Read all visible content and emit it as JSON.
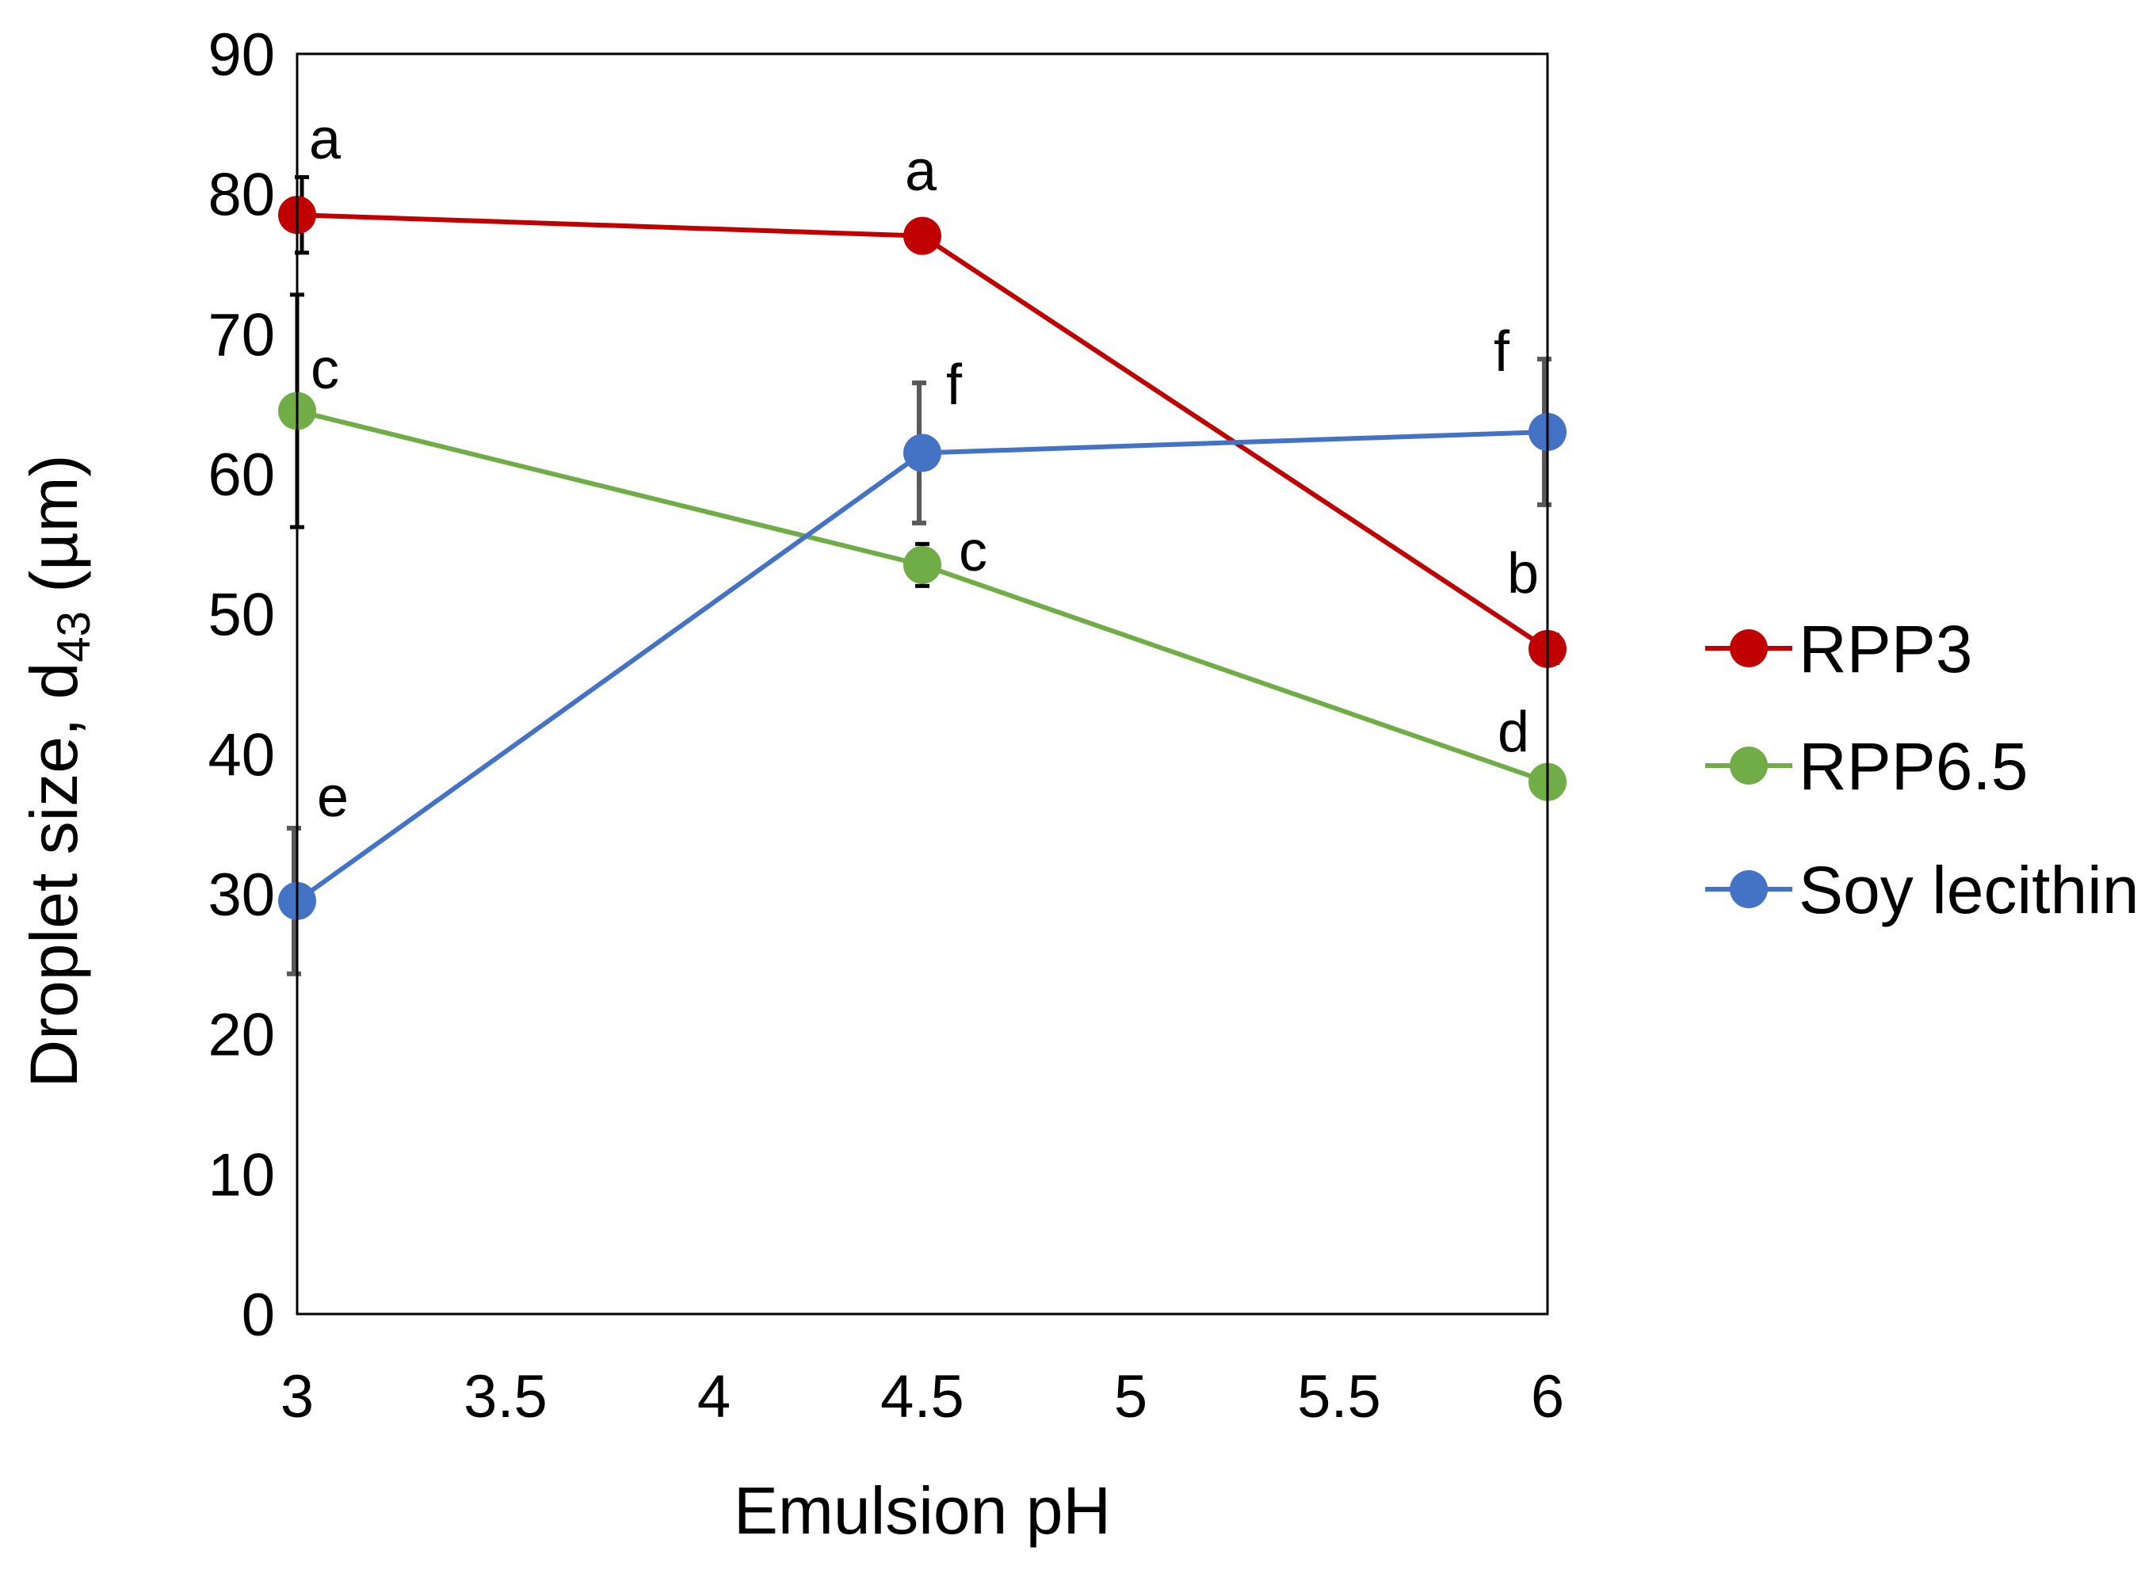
{
  "chart_data": {
    "type": "line",
    "title": "",
    "xlabel": "Emulsion pH",
    "ylabel_main": "Droplet size, d",
    "ylabel_sub": "43",
    "ylabel_unit": " (µm)",
    "xlim": [
      3,
      6
    ],
    "ylim": [
      0,
      90
    ],
    "xticks": [
      "3",
      "3.5",
      "4",
      "4.5",
      "5",
      "5.5",
      "6"
    ],
    "xtick_values": [
      3,
      3.5,
      4,
      4.5,
      5,
      5.5,
      6
    ],
    "yticks": [
      "0",
      "10",
      "20",
      "30",
      "40",
      "50",
      "60",
      "70",
      "80",
      "90"
    ],
    "ytick_values": [
      0,
      10,
      20,
      30,
      40,
      50,
      60,
      70,
      80,
      90
    ],
    "grid": false,
    "legend_position": "right",
    "x": [
      3,
      4.5,
      6
    ],
    "series": [
      {
        "name": "RPP3",
        "color": "#c00000",
        "values": [
          78.5,
          77,
          47.5
        ],
        "errors": [
          2.7,
          0,
          1.0
        ],
        "error_color": "#000000",
        "labels": [
          "a",
          "a",
          "b"
        ]
      },
      {
        "name": "RPP6.5",
        "color": "#70ad47",
        "values": [
          64.5,
          53.5,
          38
        ],
        "errors": [
          8.3,
          1.5,
          0
        ],
        "error_color": "#000000",
        "labels": [
          "c",
          "c",
          "d"
        ]
      },
      {
        "name": "Soy lecithin",
        "color": "#4472c4",
        "values": [
          29.5,
          61.5,
          63
        ],
        "errors": [
          5.2,
          5.0,
          5.2
        ],
        "error_color": "#595959",
        "labels": [
          "e",
          "f",
          "f"
        ]
      }
    ]
  }
}
